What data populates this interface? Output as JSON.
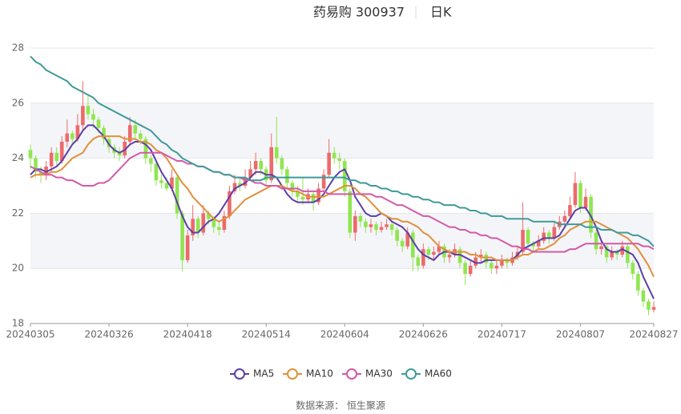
{
  "chart_data": {
    "type": "candlestick",
    "title": "药易购 300937",
    "subtitle": "日K",
    "source": "数据来源： 恒生聚源",
    "up_color": "#ec6a6a",
    "down_color": "#8fe64f",
    "grid": true,
    "split_area": true,
    "legend": "bottom",
    "categories": [
      "20240305",
      null,
      null,
      null,
      null,
      null,
      null,
      null,
      null,
      null,
      null,
      null,
      null,
      null,
      null,
      "20240326",
      null,
      null,
      null,
      null,
      null,
      null,
      null,
      null,
      null,
      null,
      null,
      null,
      null,
      null,
      "20240418",
      null,
      null,
      null,
      null,
      null,
      null,
      null,
      null,
      null,
      null,
      null,
      null,
      null,
      null,
      "20240514",
      null,
      null,
      null,
      null,
      null,
      null,
      null,
      null,
      null,
      null,
      null,
      null,
      null,
      null,
      "20240604",
      null,
      null,
      null,
      null,
      null,
      null,
      null,
      null,
      null,
      null,
      null,
      null,
      null,
      null,
      "20240626",
      null,
      null,
      null,
      null,
      null,
      null,
      null,
      null,
      null,
      null,
      null,
      null,
      null,
      null,
      "20240717",
      null,
      null,
      null,
      null,
      null,
      null,
      null,
      null,
      null,
      null,
      null,
      null,
      null,
      null,
      "20240807",
      null,
      null,
      null,
      null,
      null,
      null,
      null,
      null,
      null,
      null,
      null,
      null,
      null,
      "20240827"
    ],
    "ylim": [
      18,
      28
    ],
    "yticks": [
      18,
      20,
      22,
      24,
      26,
      28
    ],
    "candles": [
      [
        24.3,
        24.0,
        23.6,
        24.5
      ],
      [
        24.0,
        23.5,
        23.3,
        24.1
      ],
      [
        23.5,
        23.4,
        23.1,
        23.7
      ],
      [
        23.4,
        23.7,
        23.2,
        23.9
      ],
      [
        23.7,
        24.2,
        23.5,
        24.4
      ],
      [
        24.2,
        23.9,
        23.7,
        24.4
      ],
      [
        23.9,
        24.6,
        23.8,
        24.8
      ],
      [
        24.6,
        24.9,
        24.4,
        25.4
      ],
      [
        24.9,
        24.7,
        24.5,
        25.0
      ],
      [
        24.7,
        25.2,
        24.6,
        25.6
      ],
      [
        25.2,
        25.9,
        25.0,
        26.8
      ],
      [
        25.9,
        25.6,
        25.4,
        26.3
      ],
      [
        25.6,
        25.4,
        25.1,
        25.8
      ],
      [
        25.4,
        25.1,
        24.9,
        25.5
      ],
      [
        25.1,
        24.7,
        24.5,
        25.2
      ],
      [
        24.7,
        24.4,
        24.2,
        24.8
      ],
      [
        24.4,
        24.2,
        24.0,
        24.5
      ],
      [
        24.2,
        24.1,
        23.9,
        24.4
      ],
      [
        24.1,
        24.6,
        24.0,
        24.8
      ],
      [
        24.6,
        25.2,
        24.5,
        25.5
      ],
      [
        25.2,
        24.9,
        24.7,
        25.4
      ],
      [
        24.9,
        24.7,
        24.5,
        25.0
      ],
      [
        24.7,
        24.0,
        23.8,
        24.8
      ],
      [
        24.0,
        23.8,
        23.5,
        24.1
      ],
      [
        23.8,
        23.2,
        23.0,
        23.9
      ],
      [
        23.2,
        23.1,
        22.9,
        23.4
      ],
      [
        23.1,
        22.9,
        22.8,
        23.3
      ],
      [
        22.9,
        23.3,
        22.8,
        23.6
      ],
      [
        23.3,
        22.0,
        21.8,
        23.4
      ],
      [
        22.0,
        20.3,
        19.9,
        22.1
      ],
      [
        20.3,
        21.2,
        20.2,
        21.4
      ],
      [
        21.2,
        21.8,
        21.0,
        22.3
      ],
      [
        21.8,
        21.3,
        21.1,
        21.9
      ],
      [
        21.3,
        22.0,
        21.2,
        22.3
      ],
      [
        22.0,
        21.8,
        21.6,
        22.1
      ],
      [
        21.8,
        21.5,
        21.3,
        21.9
      ],
      [
        21.5,
        21.4,
        21.2,
        21.7
      ],
      [
        21.4,
        21.9,
        21.3,
        22.1
      ],
      [
        21.9,
        22.8,
        21.8,
        23.0
      ],
      [
        22.8,
        23.1,
        22.7,
        23.4
      ],
      [
        23.1,
        23.0,
        22.8,
        23.3
      ],
      [
        23.0,
        23.3,
        22.9,
        23.6
      ],
      [
        23.3,
        23.6,
        23.2,
        23.9
      ],
      [
        23.6,
        23.9,
        23.4,
        24.2
      ],
      [
        23.9,
        23.6,
        23.4,
        24.0
      ],
      [
        23.6,
        23.2,
        23.0,
        23.7
      ],
      [
        23.2,
        24.4,
        23.1,
        24.9
      ],
      [
        24.4,
        24.0,
        23.8,
        25.5
      ],
      [
        24.0,
        23.6,
        23.4,
        24.1
      ],
      [
        23.6,
        23.1,
        22.9,
        23.7
      ],
      [
        23.1,
        22.8,
        22.6,
        23.2
      ],
      [
        22.8,
        22.6,
        22.4,
        23.0
      ],
      [
        22.6,
        22.5,
        22.3,
        23.3
      ],
      [
        22.5,
        22.7,
        22.4,
        22.9
      ],
      [
        22.7,
        22.4,
        22.1,
        22.8
      ],
      [
        22.4,
        22.9,
        22.3,
        23.1
      ],
      [
        22.9,
        23.4,
        22.8,
        23.6
      ],
      [
        23.4,
        24.2,
        23.3,
        24.7
      ],
      [
        24.2,
        24.0,
        23.8,
        24.4
      ],
      [
        24.0,
        23.9,
        23.6,
        24.2
      ],
      [
        23.9,
        22.8,
        22.6,
        24.0
      ],
      [
        22.8,
        21.3,
        21.1,
        22.9
      ],
      [
        21.3,
        21.9,
        21.0,
        22.1
      ],
      [
        21.9,
        21.7,
        21.5,
        22.0
      ],
      [
        21.7,
        21.5,
        21.3,
        21.8
      ],
      [
        21.5,
        21.6,
        21.3,
        21.8
      ],
      [
        21.6,
        21.4,
        21.2,
        21.7
      ],
      [
        21.4,
        21.5,
        21.3,
        21.7
      ],
      [
        21.5,
        21.6,
        21.4,
        21.8
      ],
      [
        21.6,
        21.4,
        21.2,
        21.7
      ],
      [
        21.4,
        21.0,
        20.8,
        21.5
      ],
      [
        21.0,
        20.8,
        20.6,
        21.1
      ],
      [
        20.8,
        21.3,
        20.7,
        21.5
      ],
      [
        21.3,
        20.4,
        19.9,
        21.4
      ],
      [
        20.4,
        20.1,
        19.9,
        20.5
      ],
      [
        20.1,
        20.7,
        20.0,
        20.9
      ],
      [
        20.7,
        20.5,
        20.3,
        20.8
      ],
      [
        20.5,
        20.6,
        20.3,
        20.8
      ],
      [
        20.6,
        20.8,
        20.5,
        21.0
      ],
      [
        20.8,
        20.4,
        20.2,
        20.9
      ],
      [
        20.4,
        20.5,
        20.2,
        20.7
      ],
      [
        20.5,
        20.7,
        20.4,
        20.9
      ],
      [
        20.7,
        20.2,
        20.0,
        20.8
      ],
      [
        20.2,
        19.8,
        19.4,
        20.3
      ],
      [
        19.8,
        20.1,
        19.7,
        20.3
      ],
      [
        20.1,
        20.4,
        20.0,
        20.6
      ],
      [
        20.4,
        20.5,
        20.2,
        20.7
      ],
      [
        20.5,
        20.2,
        20.0,
        20.6
      ],
      [
        20.2,
        20.0,
        19.8,
        20.3
      ],
      [
        20.0,
        20.1,
        19.8,
        20.3
      ],
      [
        20.1,
        20.3,
        20.0,
        20.5
      ],
      [
        20.3,
        20.2,
        20.0,
        20.4
      ],
      [
        20.2,
        20.4,
        20.1,
        20.6
      ],
      [
        20.4,
        20.6,
        20.3,
        20.8
      ],
      [
        20.6,
        21.4,
        20.5,
        22.4
      ],
      [
        21.4,
        20.9,
        20.7,
        21.5
      ],
      [
        20.9,
        20.8,
        20.6,
        21.0
      ],
      [
        20.8,
        21.0,
        20.7,
        21.2
      ],
      [
        21.0,
        21.3,
        20.9,
        21.5
      ],
      [
        21.3,
        21.1,
        20.9,
        21.4
      ],
      [
        21.1,
        21.5,
        21.0,
        21.7
      ],
      [
        21.5,
        21.7,
        21.4,
        21.9
      ],
      [
        21.7,
        21.9,
        21.5,
        22.1
      ],
      [
        21.9,
        22.3,
        21.8,
        22.6
      ],
      [
        22.3,
        23.1,
        22.2,
        23.5
      ],
      [
        23.1,
        22.2,
        22.0,
        23.2
      ],
      [
        22.2,
        22.6,
        22.1,
        22.9
      ],
      [
        22.6,
        21.3,
        21.1,
        22.7
      ],
      [
        21.3,
        20.7,
        20.5,
        21.4
      ],
      [
        20.7,
        20.8,
        20.5,
        21.0
      ],
      [
        20.8,
        20.4,
        20.2,
        20.9
      ],
      [
        20.4,
        20.6,
        20.3,
        20.8
      ],
      [
        20.6,
        20.5,
        20.3,
        20.7
      ],
      [
        20.5,
        20.8,
        20.4,
        21.0
      ],
      [
        20.8,
        20.2,
        20.0,
        20.9
      ],
      [
        20.2,
        19.8,
        19.6,
        20.3
      ],
      [
        19.8,
        19.2,
        19.0,
        19.9
      ],
      [
        19.2,
        18.8,
        18.6,
        19.3
      ],
      [
        18.8,
        18.5,
        18.3,
        18.9
      ],
      [
        18.5,
        18.6,
        18.4,
        18.8
      ]
    ],
    "series": [
      {
        "name": "MA5",
        "color": "#5d3fa6",
        "values": [
          23.4,
          23.6,
          23.6,
          23.5,
          23.6,
          23.7,
          23.9,
          24.2,
          24.5,
          24.7,
          25.0,
          25.2,
          25.2,
          25.0,
          24.8,
          24.5,
          24.3,
          24.2,
          24.3,
          24.5,
          24.6,
          24.6,
          24.5,
          24.3,
          23.9,
          23.5,
          23.2,
          22.9,
          22.4,
          21.9,
          21.5,
          21.3,
          21.3,
          21.5,
          21.7,
          21.8,
          22.0,
          22.3,
          22.6,
          22.9,
          23.0,
          23.1,
          23.3,
          23.5,
          23.5,
          23.4,
          23.4,
          23.3,
          23.0,
          22.7,
          22.5,
          22.4,
          22.4,
          22.4,
          22.4,
          22.5,
          22.7,
          23.0,
          23.3,
          23.5,
          23.6,
          23.2,
          22.6,
          22.3,
          22.0,
          21.9,
          21.9,
          22.0,
          21.9,
          21.7,
          21.6,
          21.5,
          21.3,
          21.0,
          20.7,
          20.5,
          20.4,
          20.3,
          20.5,
          20.6,
          20.6,
          20.5,
          20.5,
          20.4,
          20.3,
          20.2,
          20.2,
          20.3,
          20.3,
          20.3,
          20.3,
          20.3,
          20.3,
          20.5,
          20.7,
          20.8,
          20.9,
          21.0,
          21.1,
          21.1,
          21.1,
          21.2,
          21.5,
          21.8,
          22.1,
          22.2,
          22.2,
          21.9,
          21.5,
          21.0,
          20.7,
          20.6,
          20.6,
          20.7,
          20.6,
          20.5,
          20.2,
          19.7,
          19.3,
          18.9
        ]
      },
      {
        "name": "MA10",
        "color": "#e0913a",
        "values": [
          23.3,
          23.4,
          23.4,
          23.4,
          23.5,
          23.5,
          23.6,
          23.8,
          24.0,
          24.1,
          24.2,
          24.5,
          24.7,
          24.8,
          24.8,
          24.8,
          24.8,
          24.8,
          24.7,
          24.7,
          24.7,
          24.6,
          24.6,
          24.5,
          24.3,
          24.2,
          24.0,
          23.7,
          23.4,
          23.1,
          22.9,
          22.6,
          22.4,
          22.2,
          22.0,
          21.8,
          21.7,
          21.8,
          21.9,
          22.1,
          22.3,
          22.5,
          22.6,
          22.7,
          22.8,
          22.9,
          23.0,
          23.0,
          23.0,
          22.9,
          22.8,
          22.8,
          22.7,
          22.6,
          22.6,
          22.6,
          22.6,
          22.7,
          22.8,
          22.9,
          23.0,
          23.0,
          22.9,
          22.7,
          22.6,
          22.4,
          22.2,
          22.0,
          21.9,
          21.8,
          21.8,
          21.7,
          21.7,
          21.6,
          21.5,
          21.3,
          21.2,
          21.0,
          20.8,
          20.7,
          20.6,
          20.6,
          20.6,
          20.6,
          20.5,
          20.5,
          20.4,
          20.4,
          20.4,
          20.3,
          20.3,
          20.3,
          20.3,
          20.4,
          20.5,
          20.5,
          20.6,
          20.7,
          20.7,
          20.8,
          20.9,
          21.1,
          21.2,
          21.4,
          21.5,
          21.6,
          21.7,
          21.7,
          21.7,
          21.6,
          21.5,
          21.4,
          21.3,
          21.2,
          21.1,
          20.9,
          20.7,
          20.4,
          20.1,
          19.7
        ]
      },
      {
        "name": "MA30",
        "color": "#d35aa8",
        "values": [
          23.7,
          23.6,
          23.5,
          23.4,
          23.4,
          23.3,
          23.3,
          23.2,
          23.2,
          23.1,
          23.0,
          23.0,
          23.0,
          23.1,
          23.1,
          23.2,
          23.4,
          23.6,
          23.8,
          24.0,
          24.1,
          24.2,
          24.2,
          24.2,
          24.2,
          24.2,
          24.1,
          24.0,
          23.9,
          23.9,
          23.8,
          23.8,
          23.7,
          23.7,
          23.6,
          23.5,
          23.5,
          23.4,
          23.4,
          23.3,
          23.3,
          23.2,
          23.2,
          23.1,
          23.1,
          23.0,
          23.0,
          23.0,
          22.9,
          22.9,
          22.9,
          22.9,
          22.8,
          22.8,
          22.8,
          22.8,
          22.8,
          22.7,
          22.7,
          22.7,
          22.7,
          22.7,
          22.7,
          22.7,
          22.7,
          22.7,
          22.6,
          22.6,
          22.5,
          22.4,
          22.3,
          22.3,
          22.2,
          22.1,
          22.0,
          21.9,
          21.9,
          21.8,
          21.7,
          21.6,
          21.5,
          21.5,
          21.4,
          21.4,
          21.3,
          21.3,
          21.2,
          21.2,
          21.1,
          21.1,
          21.0,
          20.9,
          20.8,
          20.8,
          20.7,
          20.7,
          20.6,
          20.6,
          20.6,
          20.6,
          20.6,
          20.6,
          20.6,
          20.7,
          20.7,
          20.8,
          20.9,
          20.9,
          20.9,
          20.9,
          20.9,
          20.9,
          20.9,
          20.9,
          20.9,
          20.9,
          20.9,
          20.8,
          20.8,
          20.7
        ]
      },
      {
        "name": "MA60",
        "color": "#3f9a9a",
        "values": [
          27.7,
          27.5,
          27.4,
          27.2,
          27.1,
          27.0,
          26.9,
          26.8,
          26.6,
          26.5,
          26.4,
          26.3,
          26.2,
          26.0,
          25.9,
          25.8,
          25.7,
          25.6,
          25.5,
          25.4,
          25.3,
          25.2,
          25.1,
          25.0,
          24.8,
          24.6,
          24.5,
          24.3,
          24.2,
          24.0,
          23.9,
          23.8,
          23.7,
          23.7,
          23.6,
          23.5,
          23.5,
          23.4,
          23.4,
          23.3,
          23.3,
          23.3,
          23.2,
          23.2,
          23.2,
          23.3,
          23.3,
          23.3,
          23.3,
          23.3,
          23.3,
          23.3,
          23.3,
          23.3,
          23.3,
          23.3,
          23.3,
          23.3,
          23.3,
          23.3,
          23.3,
          23.2,
          23.2,
          23.1,
          23.1,
          23.0,
          23.0,
          22.9,
          22.9,
          22.8,
          22.8,
          22.7,
          22.7,
          22.6,
          22.6,
          22.5,
          22.5,
          22.4,
          22.4,
          22.3,
          22.3,
          22.3,
          22.2,
          22.2,
          22.1,
          22.1,
          22.0,
          22.0,
          21.9,
          21.9,
          21.9,
          21.8,
          21.8,
          21.8,
          21.8,
          21.8,
          21.7,
          21.7,
          21.7,
          21.7,
          21.7,
          21.6,
          21.6,
          21.6,
          21.6,
          21.6,
          21.5,
          21.5,
          21.5,
          21.4,
          21.4,
          21.4,
          21.3,
          21.3,
          21.3,
          21.2,
          21.2,
          21.1,
          21.0,
          20.8
        ]
      }
    ]
  }
}
